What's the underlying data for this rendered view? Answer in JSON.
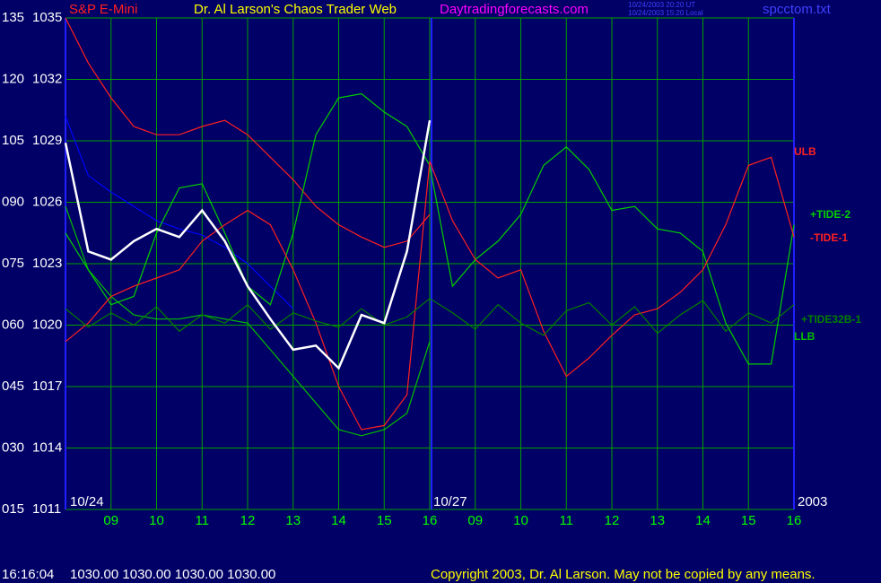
{
  "header": {
    "instrument": "S&P E-Mini",
    "site": "Dr. Al Larson's Chaos Trader Web",
    "url": "Daytradingforecasts.com",
    "stamp_ut": "10/24/2003 20:20 UT",
    "stamp_local": "10/24/2003 15:20 Local",
    "file": "spcctom.txt"
  },
  "footer": {
    "time": "16:16:04",
    "quote": "1030.00 1030.00 1030.00 1030.00",
    "copyright": "Copyright 2003, Dr. Al Larson. May not be copied by any means."
  },
  "chart_data": {
    "type": "line",
    "annotations": [
      "10/24",
      "10/27",
      "2003"
    ],
    "x": [
      0,
      0.5,
      1,
      1.5,
      2,
      2.5,
      3,
      3.5,
      4,
      4.5,
      5,
      5.5,
      6,
      6.5,
      7,
      7.5,
      8,
      8.5,
      9,
      9.5,
      10,
      10.5,
      11,
      11.5,
      12,
      12.5,
      13,
      13.5,
      14,
      14.5,
      15,
      15.5,
      16
    ],
    "xlim": [
      0,
      16
    ],
    "xticks": [
      {
        "value": 1,
        "label": "09"
      },
      {
        "value": 2,
        "label": "10"
      },
      {
        "value": 3,
        "label": "11"
      },
      {
        "value": 4,
        "label": "12"
      },
      {
        "value": 5,
        "label": "13"
      },
      {
        "value": 6,
        "label": "14"
      },
      {
        "value": 7,
        "label": "15"
      },
      {
        "value": 8,
        "label": "16"
      },
      {
        "value": 9,
        "label": "09"
      },
      {
        "value": 10,
        "label": "10"
      },
      {
        "value": 11,
        "label": "11"
      },
      {
        "value": 12,
        "label": "12"
      },
      {
        "value": 13,
        "label": "13"
      },
      {
        "value": 14,
        "label": "14"
      },
      {
        "value": 15,
        "label": "15"
      },
      {
        "value": 16,
        "label": "16"
      }
    ],
    "ylim": [
      1011,
      1035
    ],
    "yticks": [
      1011,
      1014,
      1017,
      1020,
      1023,
      1026,
      1029,
      1032,
      1035
    ],
    "y2lim": [
      15,
      135
    ],
    "y2ticks": [
      {
        "value": 15,
        "label": "015"
      },
      {
        "value": 30,
        "label": "030"
      },
      {
        "value": 45,
        "label": "045"
      },
      {
        "value": 60,
        "label": "060"
      },
      {
        "value": 75,
        "label": "075"
      },
      {
        "value": 90,
        "label": "090"
      },
      105,
      120,
      135
    ],
    "grid": true,
    "series": [
      {
        "color": "#0000ff",
        "values": [
          1030.2,
          1027.3,
          1026.5,
          1025.8,
          1025.1,
          1024.7,
          1024.4,
          1023.8,
          1023.0,
          1021.9,
          1020.8,
          null,
          null,
          null,
          null,
          null,
          null,
          null,
          null,
          null,
          null,
          null,
          null,
          null,
          null,
          null,
          null,
          null,
          null,
          null,
          null,
          null,
          null
        ]
      },
      {
        "name": "ULB",
        "color": "#ff2020",
        "values": [
          1035.0,
          1032.8,
          1031.1,
          1029.7,
          1029.3,
          1029.3,
          1029.7,
          1030.0,
          1029.3,
          1028.2,
          1027.1,
          1025.8,
          1024.9,
          1024.3,
          1023.8,
          1024.1,
          1025.4,
          null,
          null,
          null,
          null,
          null,
          null,
          null,
          null,
          null,
          null,
          null,
          null,
          null,
          null,
          null,
          null
        ]
      },
      {
        "name": "LLB",
        "color": "#00c000",
        "values": [
          1025.8,
          1022.7,
          1021.4,
          1020.5,
          1020.3,
          1020.3,
          1020.5,
          1020.3,
          1020.1,
          1018.8,
          1017.5,
          1016.2,
          1014.9,
          1014.6,
          1014.9,
          1015.7,
          1019.2,
          null,
          null,
          null,
          null,
          null,
          null,
          null,
          null,
          null,
          null,
          null,
          null,
          null,
          null,
          null,
          null
        ]
      },
      {
        "name": "+TIDE-2",
        "color": "#00d000",
        "values": [
          1024.5,
          1022.7,
          1021.0,
          1021.4,
          1024.5,
          1026.7,
          1026.9,
          1024.5,
          1021.9,
          1021.0,
          1024.5,
          1029.3,
          1031.1,
          1031.3,
          1030.4,
          1029.7,
          1027.8,
          1021.9,
          1023.2,
          1024.1,
          1025.4,
          1027.8,
          1028.7,
          1027.6,
          1025.6,
          1025.8,
          1024.7,
          1024.5,
          1023.6,
          1020.1,
          1018.1,
          1018.1,
          1024.9
        ]
      },
      {
        "name": "-TIDE-1",
        "color": "#ff2020",
        "values": [
          1019.2,
          1020.1,
          1021.4,
          1021.9,
          1022.3,
          1022.7,
          1024.1,
          1024.9,
          1025.6,
          1024.9,
          1022.7,
          1020.1,
          1017.0,
          1014.9,
          1015.1,
          1016.6,
          1028.0,
          1025.1,
          1023.2,
          1022.3,
          1022.7,
          1019.7,
          1017.5,
          1018.4,
          1019.5,
          1020.5,
          1020.8,
          1021.6,
          1022.7,
          1024.9,
          1027.8,
          1028.2,
          1024.3
        ]
      },
      {
        "name": "+TIDE32B-1",
        "color": "#008000",
        "values": [
          1020.8,
          1019.9,
          1020.6,
          1020.0,
          1020.9,
          1019.7,
          1020.5,
          1020.1,
          1021.0,
          1019.8,
          1020.6,
          1020.2,
          1019.9,
          1020.8,
          1020.0,
          1020.4,
          1021.3,
          1020.6,
          1019.8,
          1021.0,
          1020.1,
          1019.5,
          1020.7,
          1021.1,
          1020.0,
          1020.9,
          1019.6,
          1020.5,
          1021.2,
          1019.7,
          1020.6,
          1020.1,
          1021.0
        ]
      },
      {
        "color": "#ffffff",
        "values": [
          1028.9,
          1023.6,
          1023.2,
          1024.1,
          1024.7,
          1024.3,
          1025.6,
          1024.1,
          1021.9,
          1020.3,
          1018.8,
          1019.0,
          1017.9,
          1020.5,
          1020.1,
          1023.6,
          1030.0,
          null,
          null,
          null,
          null,
          null,
          null,
          null,
          null,
          null,
          null,
          null,
          null,
          null,
          null,
          null,
          null
        ]
      }
    ]
  }
}
